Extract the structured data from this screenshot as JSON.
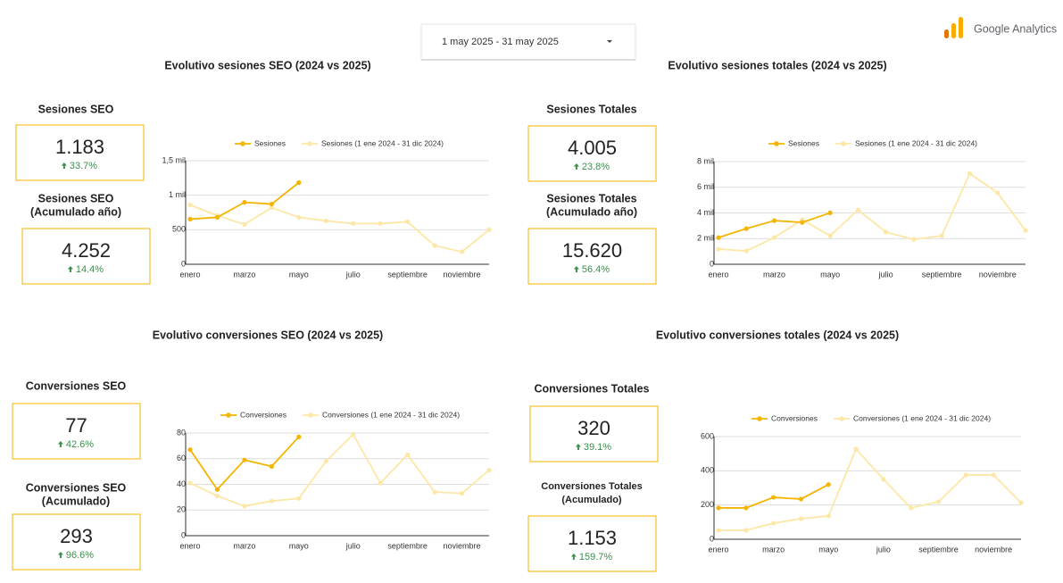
{
  "header": {
    "date_range": "1 may 2025 - 31 may 2025",
    "logo_text": "Google Analytics"
  },
  "scorecards": [
    {
      "title_lines": [
        "Sesiones SEO"
      ],
      "value": "1.183",
      "change": "33.7%"
    },
    {
      "title_lines": [
        "Sesiones SEO",
        "(Acumulado año)"
      ],
      "value": "4.252",
      "change": "14.4%"
    },
    {
      "title_lines": [
        "Sesiones Totales"
      ],
      "value": "4.005",
      "change": "23.8%"
    },
    {
      "title_lines": [
        "Sesiones Totales",
        "(Acumulado año)"
      ],
      "value": "15.620",
      "change": "56.4%"
    },
    {
      "title_lines": [
        "Conversiones SEO"
      ],
      "value": "77",
      "change": "42.6%"
    },
    {
      "title_lines": [
        "Conversiones SEO",
        "(Acumulado)"
      ],
      "value": "293",
      "change": "96.6%"
    },
    {
      "title_lines": [
        "Conversiones Totales"
      ],
      "value": "320",
      "change": "39.1%"
    },
    {
      "title_lines": [
        "Conversiones Totales",
        "(Acumulado)"
      ],
      "value": "1.153",
      "change": "159.7%"
    }
  ],
  "chart_data": [
    {
      "type": "line",
      "title": "Evolutivo sesiones SEO (2024 vs 2025)",
      "categories": [
        "enero",
        null,
        "marzo",
        null,
        "mayo",
        null,
        "julio",
        null,
        "septiembre",
        null,
        "noviembre",
        null
      ],
      "series": [
        {
          "name": "Sesiones",
          "color": "#f4b400",
          "values": [
            654,
            680,
            897,
            872,
            1183,
            null,
            null,
            null,
            null,
            null,
            null,
            null
          ]
        },
        {
          "name": "Sesiones (1 ene 2024 - 31 dic 2024)",
          "color": "#fde7a6",
          "values": [
            860,
            705,
            577,
            820,
            680,
            628,
            590,
            590,
            615,
            270,
            180,
            500
          ]
        }
      ],
      "ylim": [
        0,
        1500
      ],
      "yticks": [
        0,
        500,
        {
          "value": 1000,
          "label": "1 mil"
        },
        {
          "value": 1500,
          "label": "1,5 mil"
        }
      ],
      "grid": true
    },
    {
      "type": "line",
      "title": "Evolutivo sesiones totales (2024 vs 2025)",
      "categories": [
        "enero",
        null,
        "marzo",
        null,
        "mayo",
        null,
        "julio",
        null,
        "septiembre",
        null,
        "noviembre",
        null
      ],
      "series": [
        {
          "name": "Sesiones",
          "color": "#f4b400",
          "values": [
            2080,
            2780,
            3400,
            3260,
            4005,
            null,
            null,
            null,
            null,
            null,
            null,
            null
          ]
        },
        {
          "name": "Sesiones (1 ene 2024 - 31 dic 2024)",
          "color": "#fde7a6",
          "values": [
            1180,
            1040,
            2080,
            3470,
            2220,
            4240,
            2500,
            1940,
            2220,
            7080,
            5560,
            2640
          ]
        }
      ],
      "ylim": [
        0,
        8000
      ],
      "yticks": [
        0,
        {
          "value": 2000,
          "label": "2 mil"
        },
        {
          "value": 4000,
          "label": "4 mil"
        },
        {
          "value": 6000,
          "label": "6 mil"
        },
        {
          "value": 8000,
          "label": "8 mil"
        }
      ],
      "grid": true
    },
    {
      "type": "line",
      "title": "Evolutivo conversiones SEO (2024 vs 2025)",
      "categories": [
        "enero",
        null,
        "marzo",
        null,
        "mayo",
        null,
        "julio",
        null,
        "septiembre",
        null,
        "noviembre",
        null
      ],
      "series": [
        {
          "name": "Conversiones",
          "color": "#f4b400",
          "values": [
            67,
            36,
            59,
            54,
            77,
            null,
            null,
            null,
            null,
            null,
            null,
            null
          ]
        },
        {
          "name": "Conversiones (1 ene 2024 - 31 dic 2024)",
          "color": "#fde7a6",
          "values": [
            41,
            31,
            23,
            27,
            29,
            58,
            79,
            41,
            63,
            34,
            33,
            51
          ]
        }
      ],
      "ylim": [
        0,
        80
      ],
      "yticks": [
        0,
        20,
        40,
        60,
        80
      ],
      "grid": true
    },
    {
      "type": "line",
      "title": "Evolutivo conversiones totales (2024 vs 2025)",
      "categories": [
        "enero",
        null,
        "marzo",
        null,
        "mayo",
        null,
        "julio",
        null,
        "septiembre",
        null,
        "noviembre",
        null
      ],
      "series": [
        {
          "name": "Conversiones",
          "color": "#f4b400",
          "values": [
            183,
            183,
            245,
            235,
            320,
            null,
            null,
            null,
            null,
            null,
            null,
            null
          ]
        },
        {
          "name": "Conversiones (1 ene 2024 - 31 dic 2024)",
          "color": "#fde7a6",
          "values": [
            52,
            52,
            94,
            120,
            136,
            527,
            350,
            183,
            219,
            376,
            376,
            214
          ]
        }
      ],
      "ylim": [
        0,
        600
      ],
      "yticks": [
        0,
        200,
        400,
        600
      ],
      "grid": true
    }
  ]
}
